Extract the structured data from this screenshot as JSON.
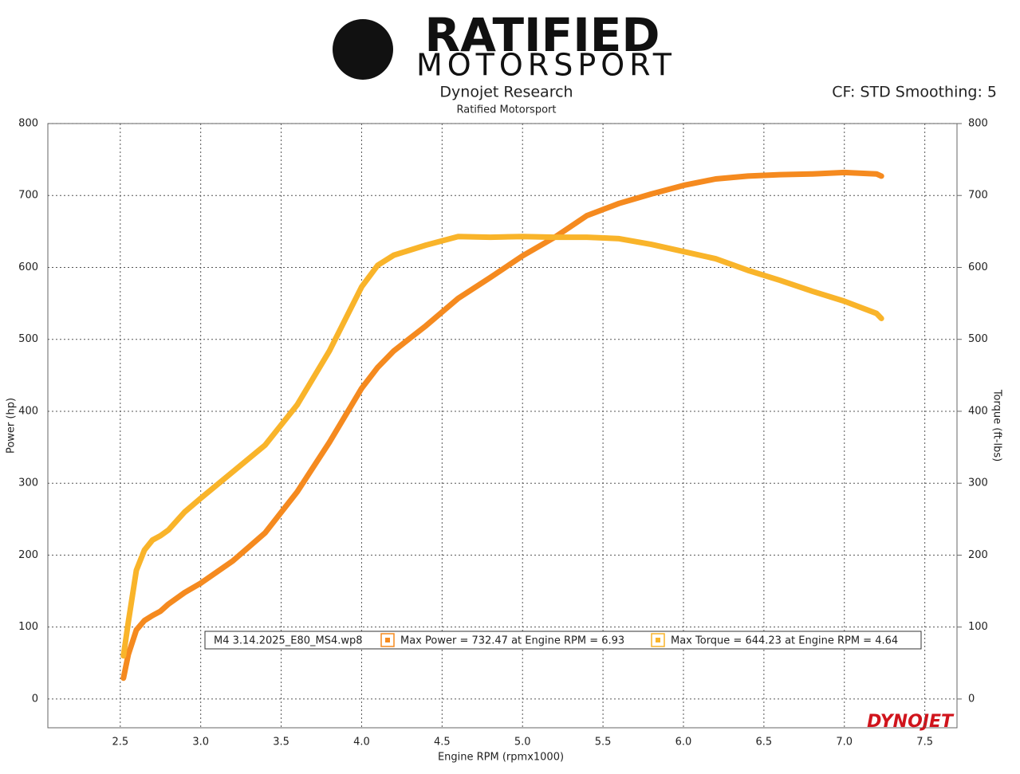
{
  "logo": {
    "line1": "RATIFIED",
    "line2": "MOTORSPORT"
  },
  "watermark": "DYNOJET",
  "chart_data": {
    "type": "line",
    "title": "Dynojet Research",
    "subtitle": "Ratified Motorsport",
    "annotation": "CF: STD Smoothing: 5",
    "x_label": "Engine RPM (rpmx1000)",
    "y_label": "Power (hp)",
    "y2_label": "Torque (ft-lbs)",
    "legend_title": "M4 3.14.2025_E80_MS4.wp8",
    "x": [
      2.52,
      2.55,
      2.6,
      2.65,
      2.7,
      2.75,
      2.8,
      2.9,
      3.0,
      3.2,
      3.4,
      3.6,
      3.8,
      4.0,
      4.1,
      4.2,
      4.4,
      4.6,
      4.8,
      5.0,
      5.2,
      5.4,
      5.6,
      5.8,
      6.0,
      6.2,
      6.4,
      6.6,
      6.8,
      7.0,
      7.2,
      7.23
    ],
    "series": [
      {
        "name": "Max Power = 732.47 at Engine RPM = 6.93",
        "color": "#f58a1f",
        "values": [
          29,
          62,
          96,
          109,
          116,
          122,
          132,
          148,
          161,
          192,
          231,
          288,
          357,
          432,
          461,
          484,
          519,
          557,
          586,
          616,
          642,
          672,
          689,
          702,
          714,
          723,
          727,
          729,
          730,
          732,
          730,
          727
        ]
      },
      {
        "name": "Max Torque = 644.23 at Engine RPM = 4.64",
        "color": "#f9b42a",
        "axis": "y2",
        "values": [
          60,
          107,
          179,
          207,
          221,
          227,
          235,
          260,
          279,
          316,
          353,
          409,
          484,
          573,
          603,
          617,
          631,
          643,
          642,
          643,
          642,
          642,
          640,
          632,
          622,
          612,
          596,
          582,
          567,
          553,
          536,
          529
        ]
      }
    ],
    "xlim": [
      2.05,
      7.7
    ],
    "xticks": [
      2.5,
      {
        "value": 3,
        "label": "3.0"
      },
      3.5,
      {
        "value": 4,
        "label": "4.0"
      },
      4.5,
      {
        "value": 5,
        "label": "5.0"
      },
      5.5,
      {
        "value": 6,
        "label": "6.0"
      },
      6.5,
      {
        "value": 7,
        "label": "7.0"
      },
      7.5
    ],
    "ylim": [
      -40,
      800
    ],
    "yticks": [
      0,
      100,
      200,
      300,
      400,
      500,
      600,
      700,
      800
    ],
    "y2lim": [
      -40,
      800
    ],
    "y2ticks": [
      0,
      100,
      200,
      300,
      400,
      500,
      600,
      700,
      800
    ],
    "grid": true
  }
}
